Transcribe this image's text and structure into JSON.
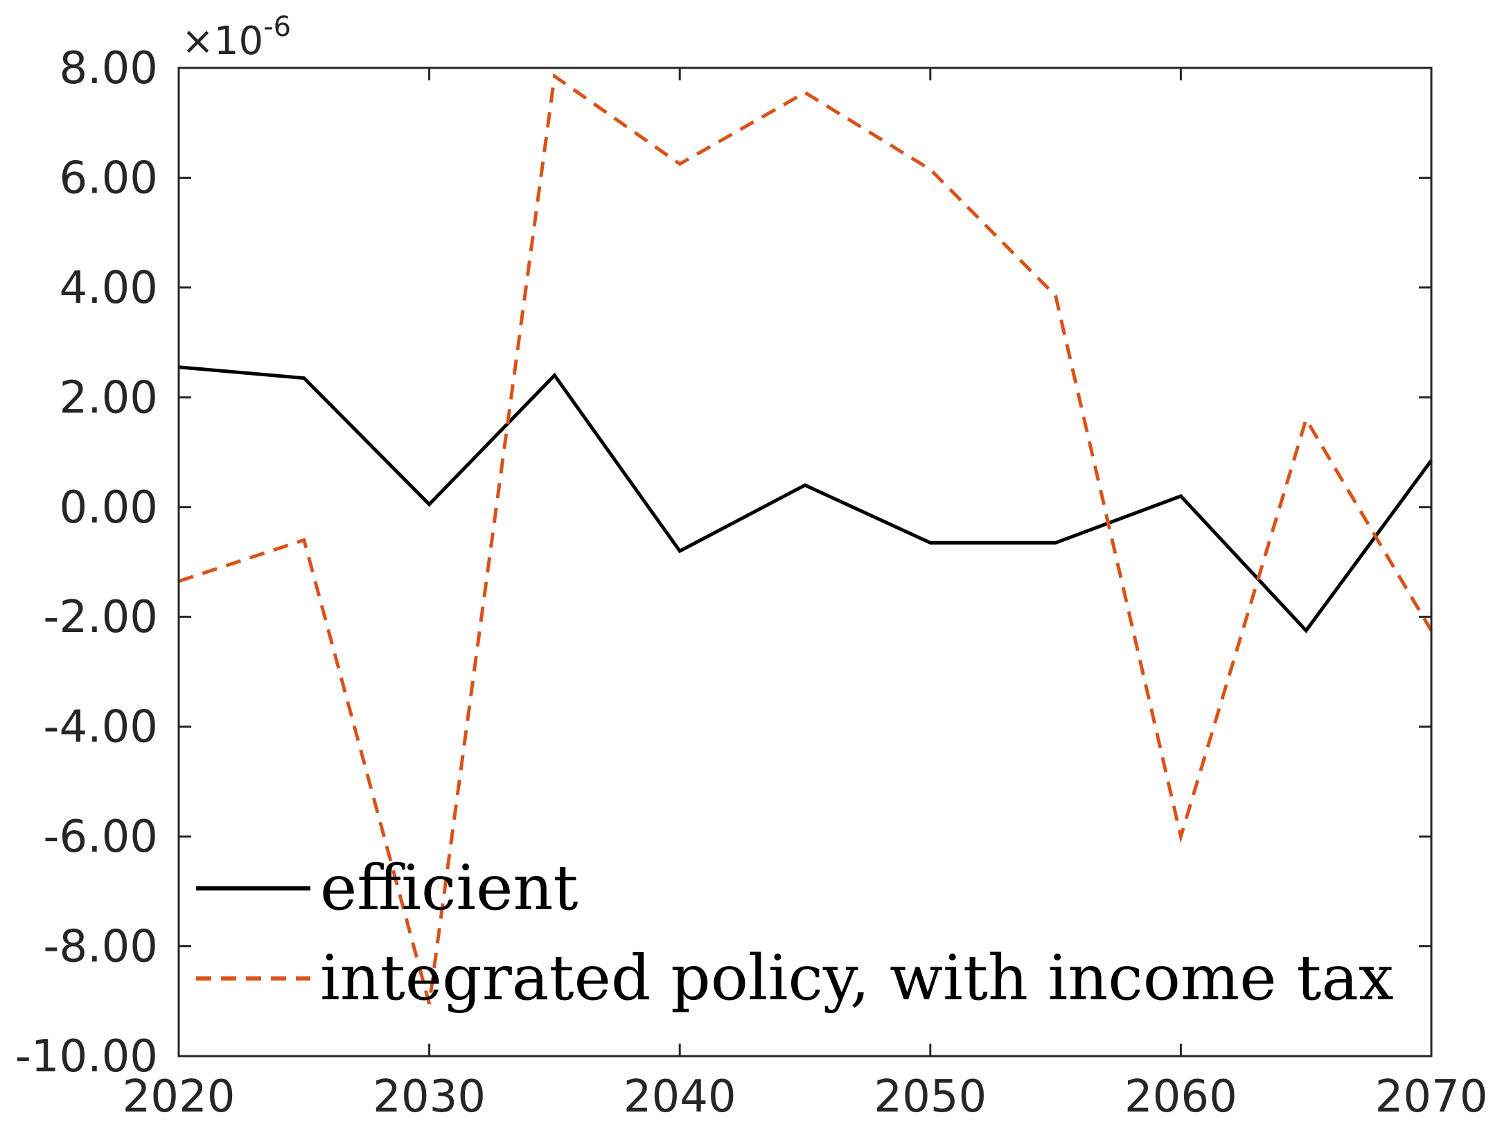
{
  "chart_data": {
    "type": "line",
    "title": "",
    "xlabel": "",
    "ylabel": "",
    "xlim": [
      2020,
      2070
    ],
    "ylim": [
      -10.0,
      8.0
    ],
    "x_ticks": [
      "2020",
      "2030",
      "2040",
      "2050",
      "2060",
      "2070"
    ],
    "y_ticks": [
      "8.00",
      "6.00",
      "4.00",
      "2.00",
      "0.00",
      "-2.00",
      "-4.00",
      "-6.00",
      "-8.00",
      "-10.00"
    ],
    "y_exponent": {
      "prefix": "×10",
      "power": "-6"
    },
    "x": [
      2020,
      2025,
      2030,
      2035,
      2040,
      2045,
      2050,
      2055,
      2060,
      2065,
      2070
    ],
    "series": [
      {
        "name": "efficient",
        "color": "#000000",
        "style": "solid",
        "values": [
          2.55,
          2.35,
          0.05,
          2.4,
          -0.8,
          0.4,
          -0.65,
          -0.65,
          0.2,
          -2.25,
          0.85
        ]
      },
      {
        "name": "integrated policy, with income tax",
        "color": "#D95319",
        "style": "dashed",
        "values": [
          -1.35,
          -0.6,
          -9.05,
          7.85,
          6.25,
          7.55,
          6.15,
          3.85,
          -6.0,
          1.6,
          -2.25
        ]
      }
    ],
    "legend_position": "bottom-left",
    "grid": false
  }
}
